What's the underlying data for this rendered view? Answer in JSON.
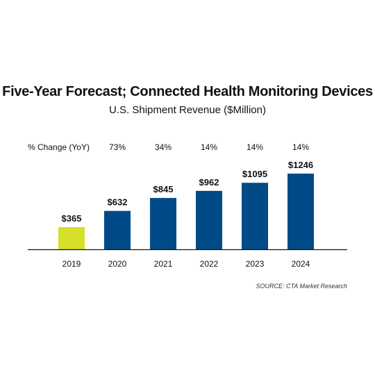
{
  "chart_data": {
    "type": "bar",
    "title": "Five-Year Forecast; Connected Health Monitoring Devices",
    "subtitle": "U.S. Shipment Revenue ($Million)",
    "categories": [
      "2019",
      "2020",
      "2021",
      "2022",
      "2023",
      "2024"
    ],
    "values": [
      365,
      632,
      845,
      962,
      1095,
      1246
    ],
    "value_labels": [
      "$365",
      "$632",
      "$845",
      "$962",
      "$1095",
      "$1246"
    ],
    "change_header": "% Change (YoY)",
    "changes": [
      "",
      "73%",
      "34%",
      "14%",
      "14%",
      "14%"
    ],
    "source": "SOURCE: CTA Market Research",
    "ylim": [
      0,
      1246
    ],
    "grid": false,
    "legend": "none",
    "colors": {
      "highlight": "#d6df2a",
      "bar": "#004b87",
      "axis": "#111111"
    },
    "bar_colors": [
      "highlight",
      "bar",
      "bar",
      "bar",
      "bar",
      "bar"
    ]
  }
}
